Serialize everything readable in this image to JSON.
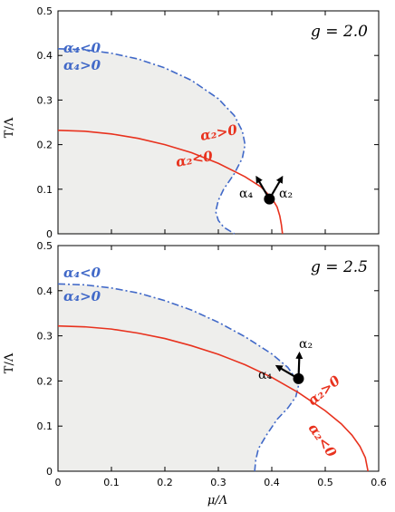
{
  "chart_data": [
    {
      "type": "line",
      "panel_label": "g = 2.0",
      "ylabel": "T/Λ",
      "xlim": [
        0,
        0.6
      ],
      "ylim": [
        0,
        0.5
      ],
      "xticks": [
        "0",
        "0.1",
        "0.2",
        "0.3",
        "0.4",
        "0.5",
        "0.6"
      ],
      "yticks": [
        "0",
        "0.1",
        "0.2",
        "0.3",
        "0.4",
        "0.5"
      ],
      "series": [
        {
          "style": "dash-dot",
          "color": "#4169c8",
          "x": [
            0.0,
            0.05,
            0.1,
            0.15,
            0.2,
            0.25,
            0.3,
            0.33,
            0.345,
            0.35,
            0.345,
            0.33,
            0.31,
            0.3,
            0.295,
            0.3,
            0.31,
            0.33
          ],
          "y": [
            0.415,
            0.413,
            0.405,
            0.392,
            0.372,
            0.344,
            0.303,
            0.265,
            0.23,
            0.2,
            0.17,
            0.135,
            0.1,
            0.075,
            0.05,
            0.03,
            0.015,
            0.0
          ]
        },
        {
          "style": "solid",
          "color": "#e8321e",
          "x": [
            0.0,
            0.05,
            0.1,
            0.15,
            0.2,
            0.25,
            0.3,
            0.35,
            0.38,
            0.4,
            0.41,
            0.415,
            0.418,
            0.42
          ],
          "y": [
            0.232,
            0.23,
            0.224,
            0.214,
            0.2,
            0.182,
            0.158,
            0.128,
            0.105,
            0.08,
            0.06,
            0.04,
            0.02,
            0.0
          ]
        }
      ],
      "tricritical_point": {
        "x": 0.3955,
        "y": 0.078
      },
      "region_labels": [
        {
          "text": "α₄<0",
          "color": "#4169c8"
        },
        {
          "text": "α₄>0",
          "color": "#4169c8"
        },
        {
          "text": "α₂>0",
          "color": "#e8321e"
        },
        {
          "text": "α₂<0",
          "color": "#e8321e"
        }
      ],
      "arrow_labels": [
        "α₄",
        "α₂"
      ]
    },
    {
      "type": "line",
      "panel_label": "g = 2.5",
      "xlabel": "μ/Λ",
      "ylabel": "T/Λ",
      "xlim": [
        0,
        0.6
      ],
      "ylim": [
        0,
        0.5
      ],
      "xticks": [
        "0",
        "0.1",
        "0.2",
        "0.3",
        "0.4",
        "0.5",
        "0.6"
      ],
      "yticks": [
        "0",
        "0.1",
        "0.2",
        "0.3",
        "0.4",
        "0.5"
      ],
      "series": [
        {
          "style": "dash-dot",
          "color": "#4169c8",
          "x": [
            0.0,
            0.05,
            0.1,
            0.15,
            0.2,
            0.25,
            0.3,
            0.35,
            0.4,
            0.43,
            0.445,
            0.45,
            0.445,
            0.43,
            0.41,
            0.39,
            0.375,
            0.37,
            0.368
          ],
          "y": [
            0.415,
            0.413,
            0.406,
            0.395,
            0.378,
            0.357,
            0.33,
            0.298,
            0.26,
            0.23,
            0.205,
            0.19,
            0.165,
            0.14,
            0.115,
            0.08,
            0.05,
            0.025,
            0.0
          ]
        },
        {
          "style": "solid",
          "color": "#e8321e",
          "x": [
            0.0,
            0.05,
            0.1,
            0.15,
            0.2,
            0.25,
            0.3,
            0.35,
            0.4,
            0.45,
            0.5,
            0.53,
            0.55,
            0.565,
            0.575,
            0.58
          ],
          "y": [
            0.322,
            0.32,
            0.315,
            0.306,
            0.294,
            0.278,
            0.259,
            0.236,
            0.208,
            0.174,
            0.134,
            0.105,
            0.08,
            0.055,
            0.03,
            0.0
          ]
        }
      ],
      "tricritical_point": {
        "x": 0.45,
        "y": 0.205
      },
      "region_labels": [
        {
          "text": "α₄<0",
          "color": "#4169c8"
        },
        {
          "text": "α₄>0",
          "color": "#4169c8"
        },
        {
          "text": "α₂>0",
          "color": "#e8321e"
        },
        {
          "text": "α₂<0",
          "color": "#e8321e"
        }
      ],
      "arrow_labels": [
        "α₄",
        "α₂"
      ]
    }
  ]
}
